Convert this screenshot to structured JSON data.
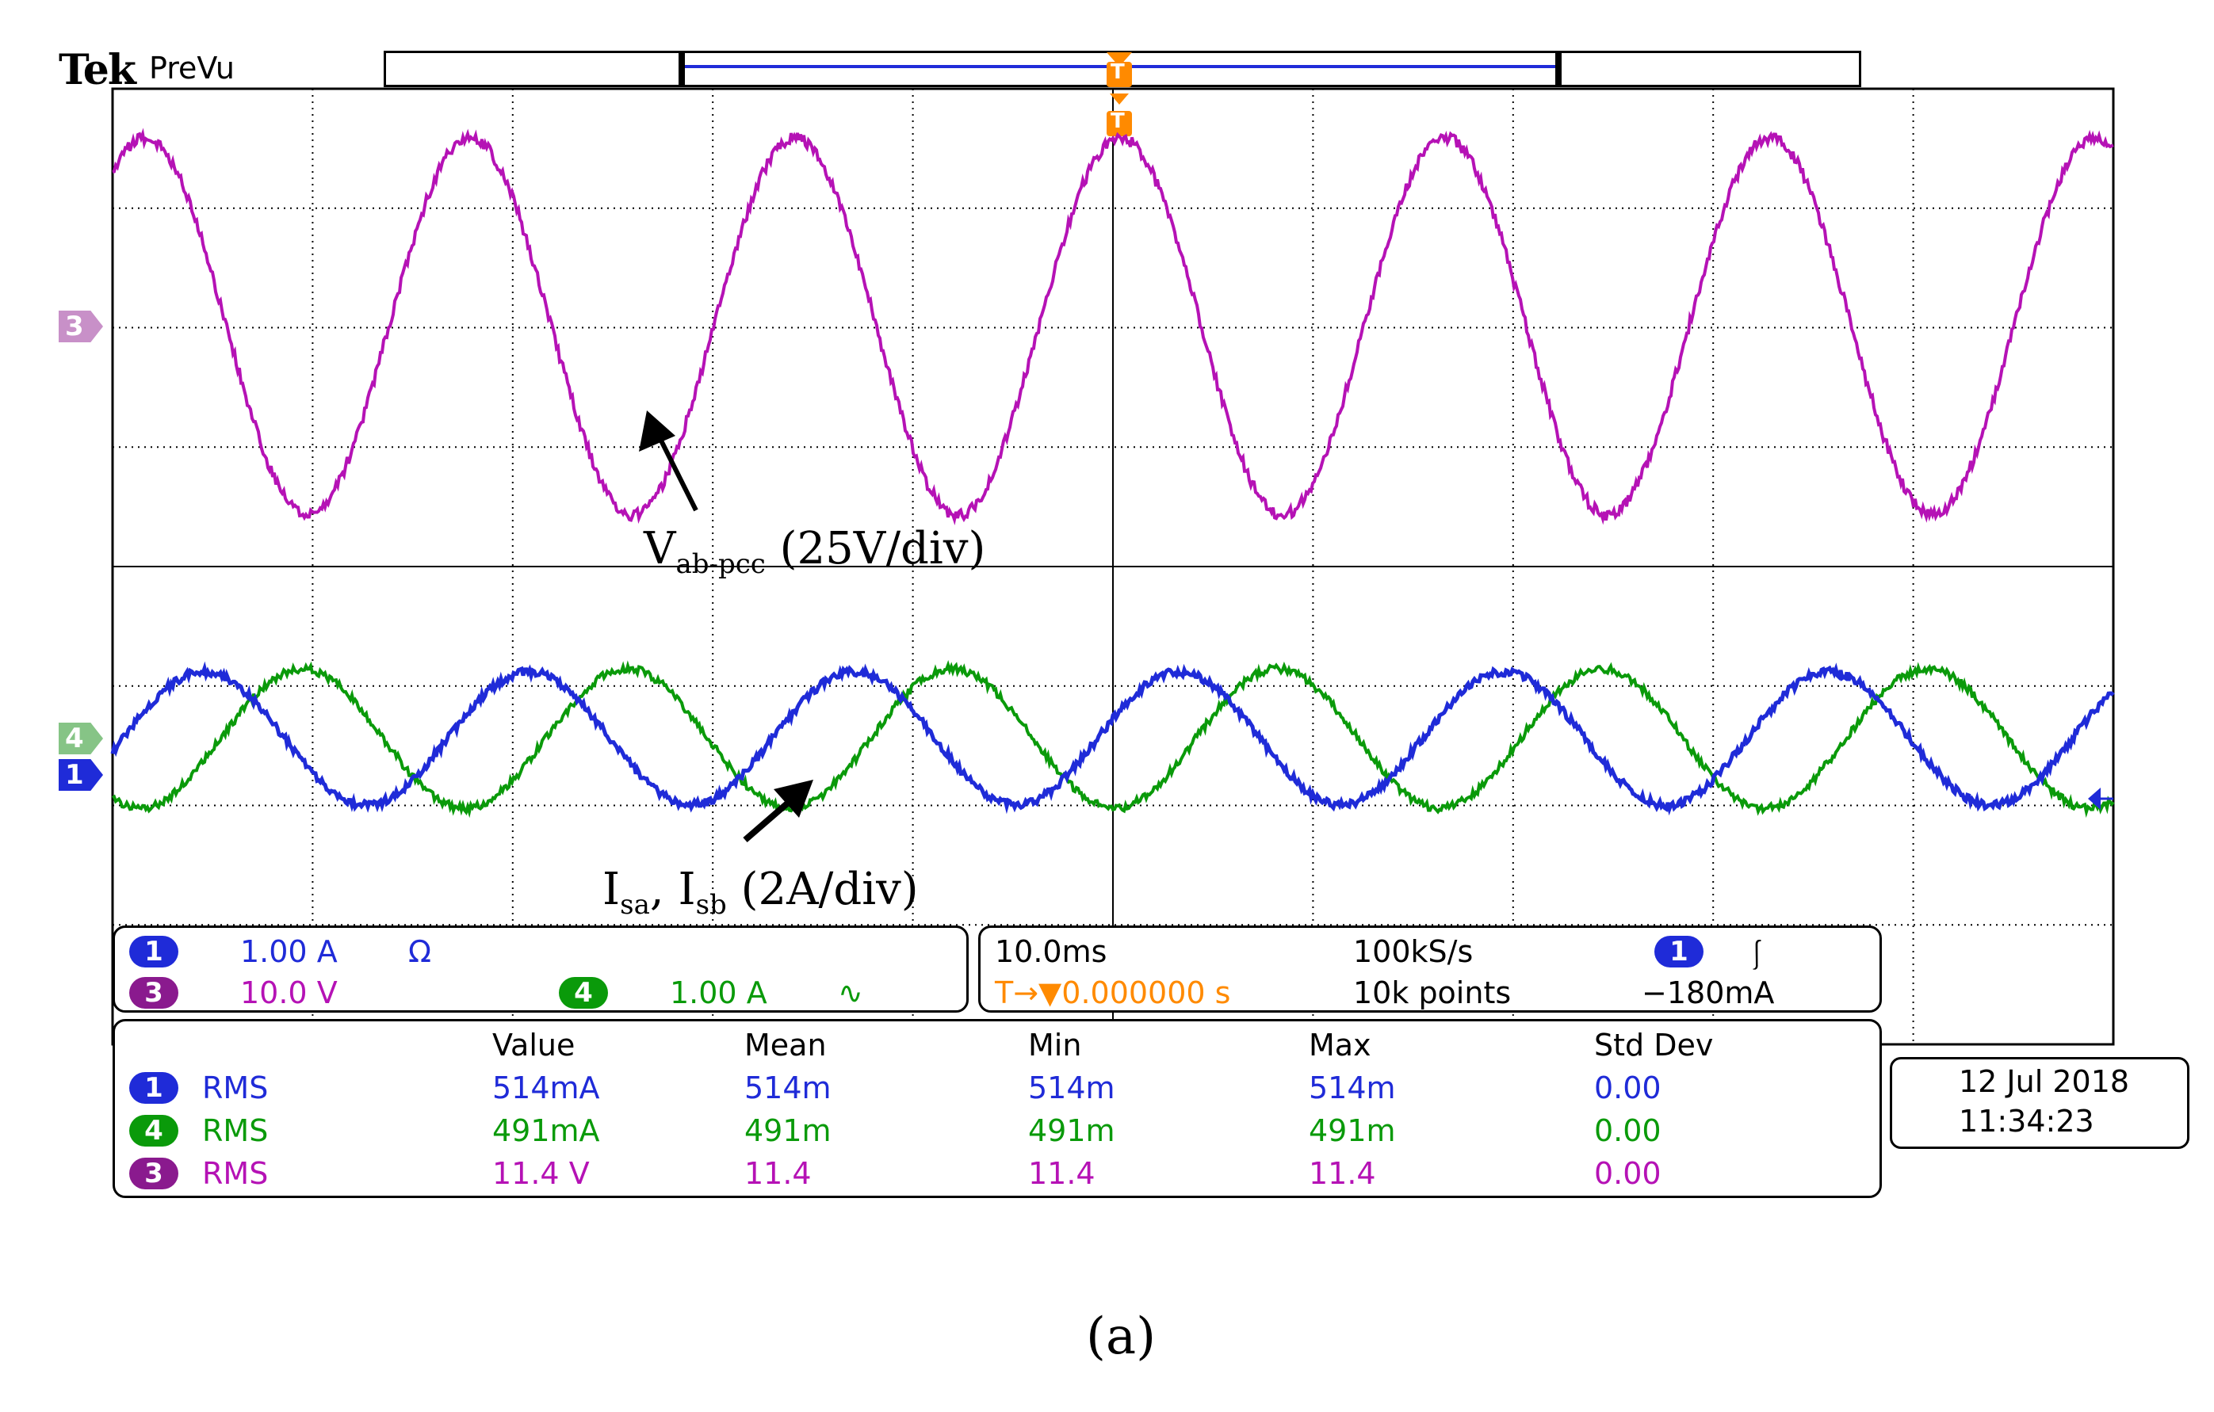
{
  "header": {
    "brand": "Tek",
    "mode": "PreVu"
  },
  "trigger_marker": "T",
  "channel_markers": {
    "ch3": "3",
    "ch4": "4",
    "ch1": "1"
  },
  "annotations": {
    "voltage": {
      "symbol": "V",
      "sub": "ab-pcc",
      "scale": "(25V/div)"
    },
    "current": {
      "symbol1": "I",
      "sub1": "sa",
      "sep": ", ",
      "symbol2": "I",
      "sub2": "sb",
      "scale": "(2A/div)"
    }
  },
  "channel_settings": {
    "ch1": {
      "badge": "1",
      "scale": "1.00 A",
      "coupling": "Ω"
    },
    "ch3": {
      "badge": "3",
      "scale": "10.0 V"
    },
    "ch4": {
      "badge": "4",
      "scale": "1.00 A",
      "coupling": "∿"
    }
  },
  "timebase": {
    "time_div": "10.0ms",
    "sample_rate": "100kS/s",
    "points": "10k points",
    "trigger_channel": "1",
    "trigger_slope": "⎰",
    "trigger_level": "−180mA",
    "trigger_position": "T→▼0.000000 s"
  },
  "measurements": {
    "headers": [
      "Value",
      "Mean",
      "Min",
      "Max",
      "Std Dev"
    ],
    "rows": [
      {
        "badge": "1",
        "type": "RMS",
        "value": "514mA",
        "mean": "514m",
        "min": "514m",
        "max": "514m",
        "std": "0.00"
      },
      {
        "badge": "4",
        "type": "RMS",
        "value": "491mA",
        "mean": "491m",
        "min": "491m",
        "max": "491m",
        "std": "0.00"
      },
      {
        "badge": "3",
        "type": "RMS",
        "value": "11.4 V",
        "mean": "11.4",
        "min": "11.4",
        "max": "11.4",
        "std": "0.00"
      }
    ]
  },
  "datetime": {
    "date": "12 Jul  2018",
    "time": "11:34:23"
  },
  "caption": "(a)",
  "colors": {
    "ch1": "#1f2bd8",
    "ch3": "#b512b5",
    "ch4": "#0a9a0a",
    "trigger": "#ff8a00"
  }
}
